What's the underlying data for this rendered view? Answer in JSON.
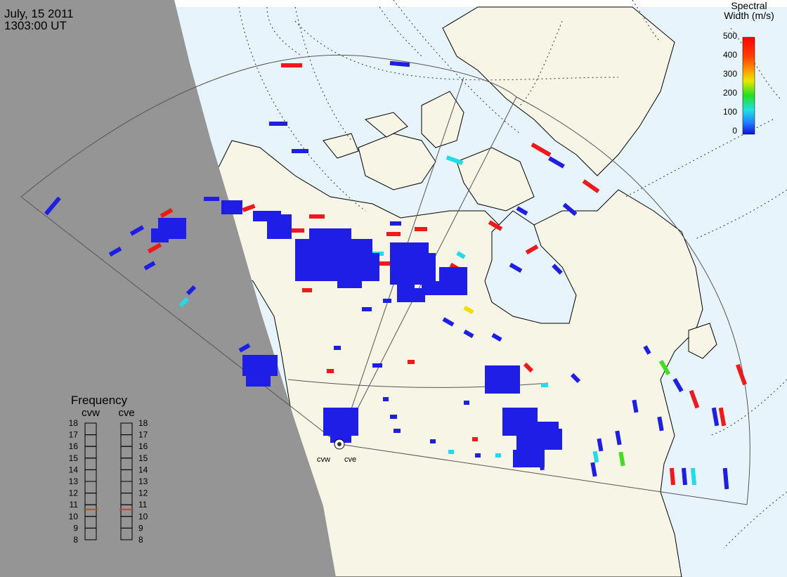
{
  "header": {
    "date": "July, 15 2011",
    "time": "1303:00 UT"
  },
  "legend": {
    "title_line1": "Spectral",
    "title_line2": "Width (m/s)",
    "ticks": [
      "500",
      "400",
      "300",
      "200",
      "100",
      "0"
    ]
  },
  "frequency_panel": {
    "title": "Frequency",
    "col_left": "cvw",
    "col_right": "cve",
    "scale": [
      "18",
      "17",
      "16",
      "15",
      "14",
      "13",
      "12",
      "11",
      "10",
      "9",
      "8"
    ],
    "cvw_marker": 10.6,
    "cve_marker": 10.6
  },
  "stations": {
    "west": "cvw",
    "east": "cve"
  },
  "colors": {
    "night_shade": "#959595",
    "ocean": "#e8f4fb",
    "land": "#f7f5e6",
    "echo_blue": "#1e1ee6",
    "echo_red": "#f01818",
    "echo_cyan": "#20dce8",
    "echo_green": "#40e020",
    "echo_yellow": "#f0e000",
    "marker": "#e04010"
  }
}
